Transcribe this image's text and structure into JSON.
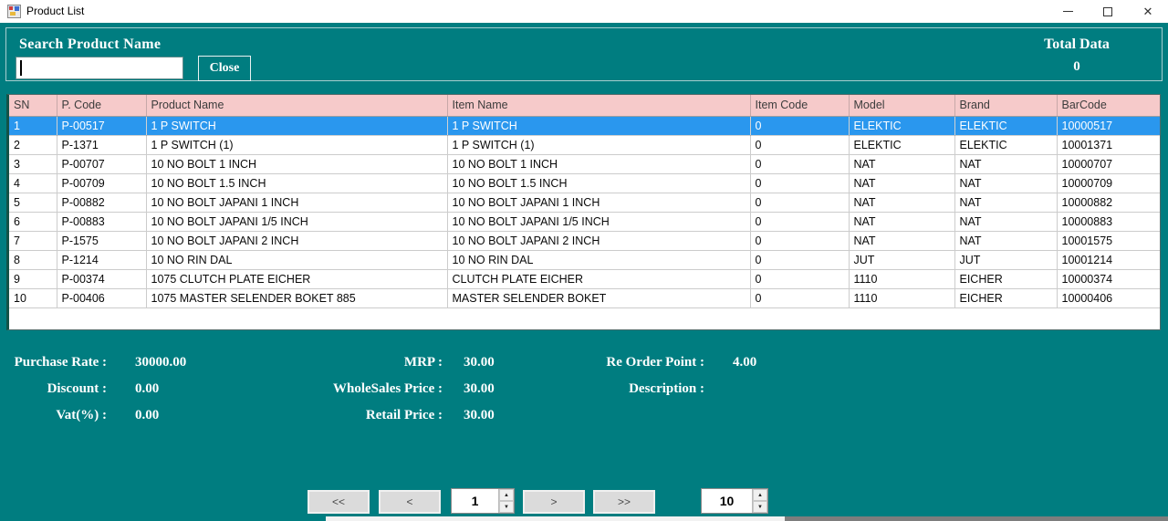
{
  "window": {
    "title": "Product List",
    "controls": {
      "minimize": "minimize",
      "maximize": "maximize",
      "close": "✕"
    }
  },
  "search": {
    "label": "Search  Product Name",
    "input_value": "",
    "close_button": "Close",
    "total_label": "Total Data",
    "total_value": "0"
  },
  "grid": {
    "columns": [
      "SN",
      "P. Code",
      "Product Name",
      "Item Name",
      "Item Code",
      "Model",
      "Brand",
      "BarCode"
    ],
    "selected_row_index": 0,
    "rows": [
      [
        "1",
        "P-00517",
        "1 P SWITCH",
        "1 P SWITCH",
        "0",
        "ELEKTIC",
        "ELEKTIC",
        "10000517"
      ],
      [
        "2",
        "P-1371",
        "1 P SWITCH (1)",
        "1 P SWITCH (1)",
        "0",
        "ELEKTIC",
        "ELEKTIC",
        "10001371"
      ],
      [
        "3",
        "P-00707",
        "10 NO BOLT 1 INCH",
        "10 NO BOLT 1 INCH",
        "0",
        "NAT",
        "NAT",
        "10000707"
      ],
      [
        "4",
        "P-00709",
        "10 NO BOLT 1.5 INCH",
        "10 NO BOLT 1.5 INCH",
        "0",
        "NAT",
        "NAT",
        "10000709"
      ],
      [
        "5",
        "P-00882",
        "10 NO BOLT JAPANI 1 INCH",
        "10 NO BOLT JAPANI 1 INCH",
        "0",
        "NAT",
        "NAT",
        "10000882"
      ],
      [
        "6",
        "P-00883",
        "10 NO BOLT JAPANI 1/5 INCH",
        "10 NO BOLT JAPANI 1/5 INCH",
        "0",
        "NAT",
        "NAT",
        "10000883"
      ],
      [
        "7",
        "P-1575",
        "10 NO BOLT JAPANI 2 INCH",
        "10 NO BOLT JAPANI 2 INCH",
        "0",
        "NAT",
        "NAT",
        "10001575"
      ],
      [
        "8",
        "P-1214",
        "10 NO RIN DAL",
        "10 NO RIN DAL",
        "0",
        "JUT",
        "JUT",
        "10001214"
      ],
      [
        "9",
        "P-00374",
        "1075 CLUTCH PLATE EICHER",
        "CLUTCH PLATE EICHER",
        "0",
        "1110",
        "EICHER",
        "10000374"
      ],
      [
        "10",
        "P-00406",
        "1075 MASTER SELENDER BOKET 885",
        "MASTER SELENDER BOKET",
        "0",
        "1110",
        "EICHER",
        "10000406"
      ]
    ]
  },
  "details": {
    "purchase_rate": {
      "label": "Purchase Rate :",
      "value": "30000.00"
    },
    "discount": {
      "label": "Discount :",
      "value": "0.00"
    },
    "vat": {
      "label": "Vat(%) :",
      "value": "0.00"
    },
    "mrp": {
      "label": "MRP :",
      "value": "30.00"
    },
    "wholesales_price": {
      "label": "WholeSales Price :",
      "value": "30.00"
    },
    "retail_price": {
      "label": "Retail Price :",
      "value": "30.00"
    },
    "reorder_point": {
      "label": "Re Order Point :",
      "value": "4.00"
    },
    "description": {
      "label": "Description :",
      "value": ""
    }
  },
  "pagination": {
    "first_label": "<<",
    "prev_label": "<",
    "page_value": "1",
    "next_label": ">",
    "last_label": ">>",
    "page_size_value": "10"
  },
  "colors": {
    "form_background": "#007d80",
    "grid_header_background": "#f6caca",
    "selected_row_background": "#2a97ee",
    "groupbox_border": "#a7cecf"
  }
}
